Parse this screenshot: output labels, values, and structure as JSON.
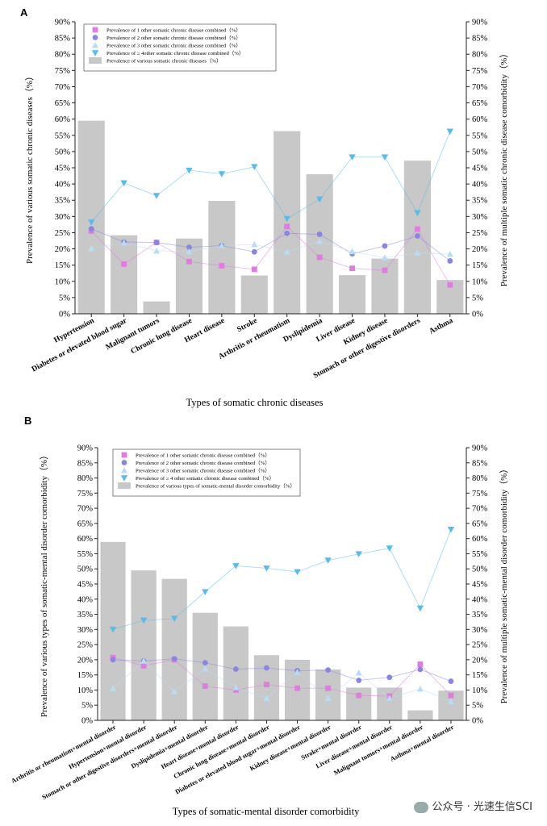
{
  "watermark": "公众号 · 光速生信SCI",
  "colors": {
    "bar": "#c8c8c8",
    "s1": "#e07be0",
    "s2": "#8a86e0",
    "s3": "#b9dcf3",
    "s4": "#5bbbe8"
  },
  "chart_data": [
    {
      "panel": "A",
      "type": "bar+line",
      "xlabel": "Types of somatic chronic diseases",
      "ylabel_left": "Prevalence of various somatic chronic diseases（%）",
      "ylabel_right": "Prevalence of multiple somatic chronic disease comorbidity（%）",
      "ylim": [
        0,
        90
      ],
      "yticks": [
        "0%",
        "5%",
        "10%",
        "15%",
        "20%",
        "25%",
        "30%",
        "35%",
        "40%",
        "45%",
        "50%",
        "55%",
        "60%",
        "65%",
        "70%",
        "75%",
        "80%",
        "85%",
        "90%"
      ],
      "legend_position": "top-left",
      "categories": [
        "Hypertension",
        "Diabetes or elevated blood sugar",
        "Malignant tumors",
        "Chronic lung disease",
        "Heart disease",
        "Stroke",
        "Arthritis or rheumatism",
        "Dyslipidemia",
        "Liver disease",
        "Kidney disease",
        "Stomach or other digestive disorders",
        "Asthma"
      ],
      "bars": {
        "name": "Prevalence of various somatic chronic diseases（%）",
        "values": [
          59.5,
          24.2,
          3.8,
          23.2,
          34.8,
          11.8,
          56.3,
          43.0,
          11.9,
          17.0,
          47.2,
          10.4
        ]
      },
      "series": [
        {
          "name": "Prevalence of 1 other somatic chronic disease combined（%）",
          "marker": "square",
          "values": [
            25.5,
            15.3,
            22.0,
            16.1,
            14.8,
            13.7,
            26.9,
            17.4,
            14.0,
            13.4,
            26.1,
            8.9
          ]
        },
        {
          "name": "Prevalence of 2 other somatic chronic disease combined（%）",
          "marker": "circle",
          "values": [
            26.2,
            22.1,
            22.0,
            20.5,
            21.0,
            19.1,
            24.8,
            24.5,
            18.5,
            20.9,
            24.0,
            16.3
          ]
        },
        {
          "name": "Prevalence of 3 other somatic chronic disease combined（%）",
          "marker": "triangle-up",
          "values": [
            20.1,
            21.9,
            19.4,
            19.2,
            21.0,
            21.4,
            19.1,
            22.4,
            19.2,
            17.3,
            18.8,
            18.4
          ]
        },
        {
          "name": "Prevalence of ≥ 4other somatic chronic disease combined（%）",
          "marker": "triangle-down",
          "values": [
            28.2,
            40.3,
            36.4,
            44.2,
            43.1,
            45.3,
            29.3,
            35.3,
            48.3,
            48.3,
            31.1,
            56.2
          ]
        }
      ]
    },
    {
      "panel": "B",
      "type": "bar+line",
      "xlabel": "Types of somatic-mental disorder comorbidity",
      "ylabel_left": "Prevalence of various types of somatic-mental disorder comorbidity（%）",
      "ylabel_right": "Prevalence of multiple somatic-mental disorder comorbidity（%）",
      "ylim": [
        0,
        90
      ],
      "yticks": [
        "0%",
        "5%",
        "10%",
        "15%",
        "20%",
        "25%",
        "30%",
        "35%",
        "40%",
        "45%",
        "50%",
        "55%",
        "60%",
        "65%",
        "70%",
        "75%",
        "80%",
        "85%",
        "90%"
      ],
      "legend_position": "top-left",
      "categories": [
        "Arthritis or rheumatism+mental disorder",
        "Hypertension+mental disorder",
        "Stomach or other digestive disorders+mental disorder",
        "Dyslipidemia+mental disorder",
        "Heart disease+mental disorder",
        "Chronic lung disease+mental disorder",
        "Diabetes or elevated blood sugar+mental disorder",
        "Kidney disease+mental disorder",
        "Stroke+mental disorder",
        "Liver disease+mental disorder",
        "Malignant tumors+mental disorder",
        "Asthma+mental disorder"
      ],
      "bars": {
        "name": "Prevalence of various types of somatic-mental disorder comorbidity（%）",
        "values": [
          58.9,
          49.5,
          46.7,
          35.5,
          31.0,
          21.5,
          20.0,
          16.8,
          10.8,
          10.8,
          3.3,
          9.8
        ]
      },
      "series": [
        {
          "name": "Prevalence of 1 other somatic chronic disease combined（%）",
          "marker": "square",
          "values": [
            20.7,
            18.0,
            20.0,
            11.3,
            10.0,
            11.8,
            10.6,
            10.6,
            8.2,
            8.0,
            18.5,
            8.2
          ]
        },
        {
          "name": "Prevalence of 2 other somatic chronic disease combined（%）",
          "marker": "circle",
          "values": [
            20.0,
            19.6,
            20.3,
            19.0,
            16.9,
            17.3,
            16.4,
            16.6,
            13.2,
            14.2,
            16.8,
            12.9
          ]
        },
        {
          "name": "Prevalence of 3 other somatic chronic disease combined（%）",
          "marker": "triangle-up",
          "values": [
            10.6,
            19.6,
            9.5,
            17.0,
            10.9,
            7.3,
            15.9,
            7.3,
            15.7,
            7.3,
            10.4,
            6.2
          ]
        },
        {
          "name": "Prevalence of ≥ 4 other somatic chronic disease combined（%）",
          "marker": "triangle-down",
          "values": [
            30.0,
            33.0,
            33.6,
            42.4,
            51.0,
            50.2,
            49.0,
            52.8,
            54.9,
            56.8,
            37.0,
            63.0
          ]
        }
      ]
    }
  ]
}
